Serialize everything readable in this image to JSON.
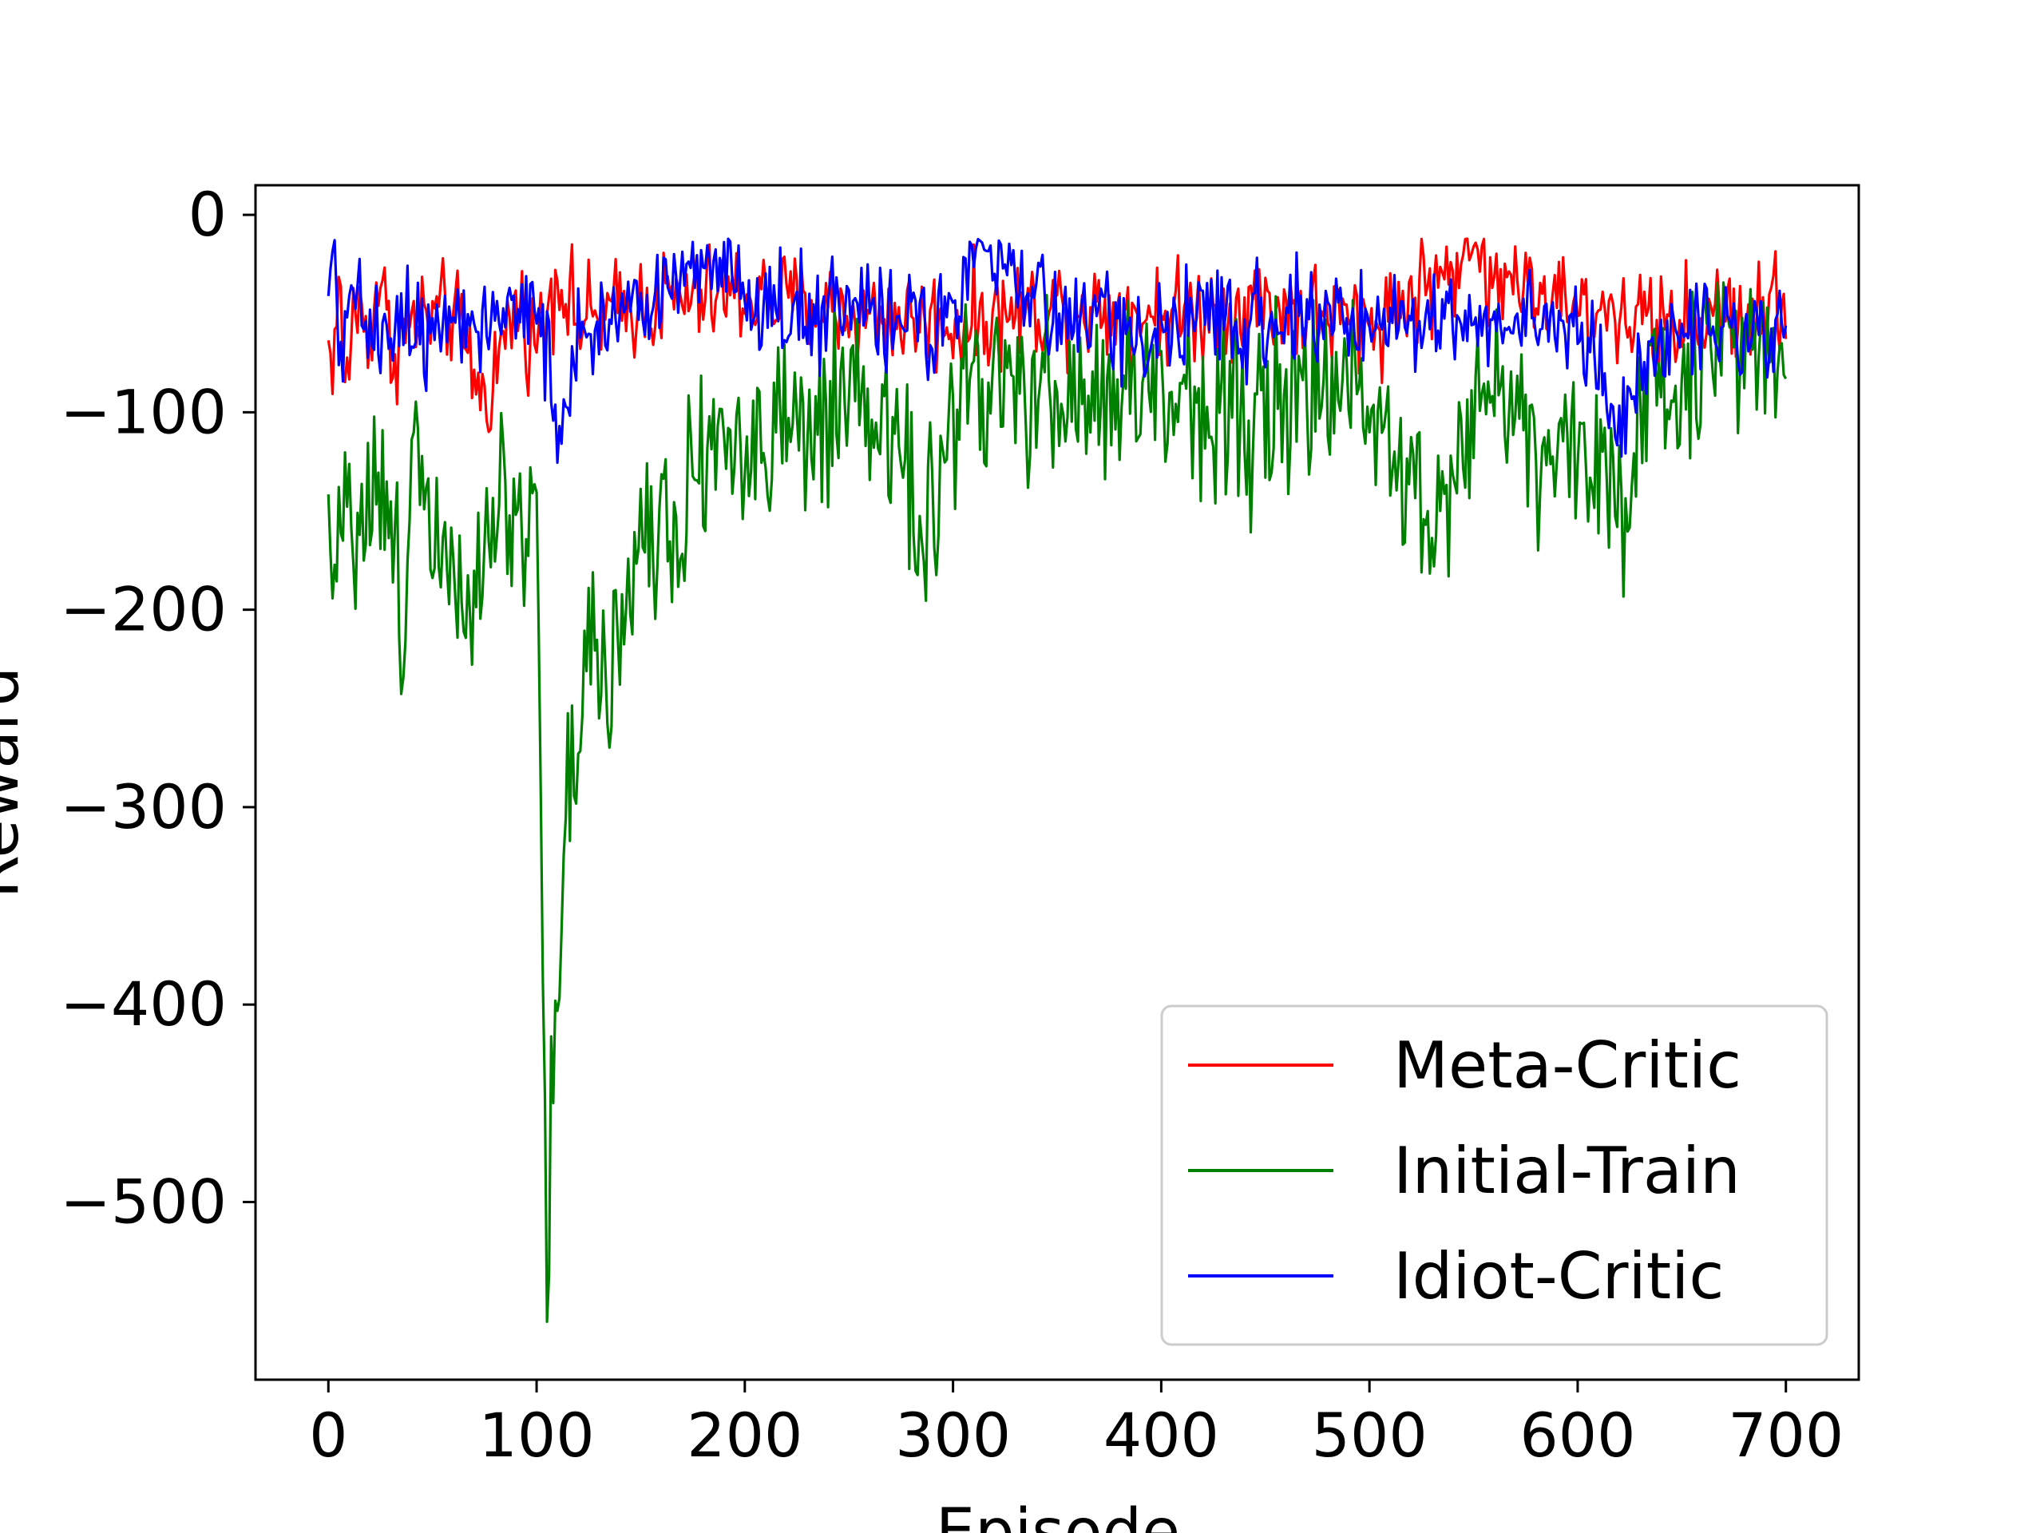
{
  "chart_data": {
    "type": "line",
    "title": "",
    "xlabel": "Episode",
    "ylabel": "Reward",
    "xlim": [
      -35,
      735
    ],
    "ylim": [
      -590,
      15
    ],
    "xticks": [
      0,
      100,
      200,
      300,
      400,
      500,
      600,
      700
    ],
    "yticks": [
      0,
      -100,
      -200,
      -300,
      -400,
      -500
    ],
    "xtick_labels": [
      "0",
      "100",
      "200",
      "300",
      "400",
      "500",
      "600",
      "700"
    ],
    "ytick_labels": [
      "0",
      "−100",
      "−200",
      "−300",
      "−400",
      "−500"
    ],
    "grid": false,
    "legend_position": "lower-right",
    "x": {
      "start": 0,
      "end": 700,
      "step": 1
    },
    "series": [
      {
        "name": "Meta-Critic",
        "color": "#ff0000",
        "keypoints": [
          [
            0,
            -68
          ],
          [
            3,
            -70
          ],
          [
            5,
            -30
          ],
          [
            8,
            -95
          ],
          [
            12,
            -45
          ],
          [
            20,
            -60
          ],
          [
            25,
            -28
          ],
          [
            30,
            -70
          ],
          [
            40,
            -55
          ],
          [
            60,
            -50
          ],
          [
            75,
            -95
          ],
          [
            90,
            -45
          ],
          [
            100,
            -65
          ],
          [
            110,
            -28
          ],
          [
            120,
            -55
          ],
          [
            150,
            -45
          ],
          [
            200,
            -40
          ],
          [
            250,
            -50
          ],
          [
            300,
            -55
          ],
          [
            350,
            -45
          ],
          [
            400,
            -50
          ],
          [
            450,
            -45
          ],
          [
            500,
            -55
          ],
          [
            550,
            -20
          ],
          [
            600,
            -50
          ],
          [
            650,
            -55
          ],
          [
            700,
            -45
          ]
        ],
        "noise": 13
      },
      {
        "name": "Initial-Train",
        "color": "#008000",
        "keypoints": [
          [
            0,
            -140
          ],
          [
            3,
            -165
          ],
          [
            6,
            -190
          ],
          [
            8,
            -100
          ],
          [
            12,
            -160
          ],
          [
            20,
            -140
          ],
          [
            30,
            -150
          ],
          [
            35,
            -230
          ],
          [
            40,
            -105
          ],
          [
            50,
            -150
          ],
          [
            70,
            -190
          ],
          [
            80,
            -140
          ],
          [
            95,
            -150
          ],
          [
            100,
            -140
          ],
          [
            102,
            -300
          ],
          [
            104,
            -450
          ],
          [
            105,
            -560
          ],
          [
            107,
            -430
          ],
          [
            110,
            -400
          ],
          [
            115,
            -280
          ],
          [
            120,
            -300
          ],
          [
            125,
            -200
          ],
          [
            135,
            -230
          ],
          [
            150,
            -160
          ],
          [
            170,
            -150
          ],
          [
            180,
            -110
          ],
          [
            200,
            -120
          ],
          [
            250,
            -105
          ],
          [
            280,
            -120
          ],
          [
            285,
            -195
          ],
          [
            300,
            -90
          ],
          [
            350,
            -95
          ],
          [
            400,
            -90
          ],
          [
            450,
            -100
          ],
          [
            500,
            -85
          ],
          [
            533,
            -160
          ],
          [
            550,
            -85
          ],
          [
            620,
            -140
          ],
          [
            650,
            -75
          ],
          [
            700,
            -55
          ]
        ],
        "noise": 24
      },
      {
        "name": "Idiot-Critic",
        "color": "#0000ff",
        "keypoints": [
          [
            0,
            -35
          ],
          [
            3,
            -20
          ],
          [
            5,
            -95
          ],
          [
            8,
            -40
          ],
          [
            20,
            -60
          ],
          [
            40,
            -55
          ],
          [
            60,
            -50
          ],
          [
            80,
            -55
          ],
          [
            100,
            -50
          ],
          [
            105,
            -75
          ],
          [
            110,
            -120
          ],
          [
            113,
            -120
          ],
          [
            118,
            -60
          ],
          [
            130,
            -50
          ],
          [
            150,
            -45
          ],
          [
            190,
            -20
          ],
          [
            200,
            -45
          ],
          [
            250,
            -50
          ],
          [
            300,
            -55
          ],
          [
            315,
            -15
          ],
          [
            350,
            -50
          ],
          [
            400,
            -60
          ],
          [
            450,
            -50
          ],
          [
            500,
            -55
          ],
          [
            550,
            -50
          ],
          [
            600,
            -60
          ],
          [
            620,
            -100
          ],
          [
            650,
            -55
          ],
          [
            700,
            -60
          ]
        ],
        "noise": 13
      }
    ]
  }
}
